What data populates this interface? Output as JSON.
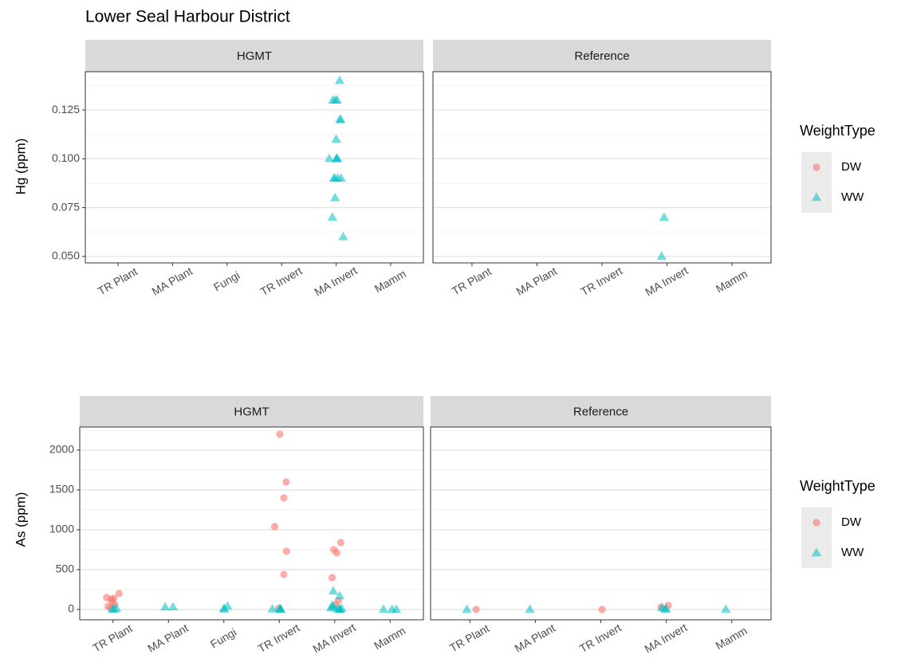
{
  "title": "Lower Seal Harbour District",
  "chart_data": [
    {
      "type": "scatter",
      "ylabel": "Hg (ppm)",
      "ylim": [
        0.0467,
        0.1446
      ],
      "yticks": [
        {
          "value": 0.05,
          "label": "0.050"
        },
        0.075,
        {
          "value": 0.1,
          "label": "0.100"
        },
        0.125
      ],
      "grid": true,
      "legend_title": "WeightType",
      "legend": "right",
      "series": [
        {
          "name": "DW",
          "color": "#f8766d",
          "marker": "circle"
        },
        {
          "name": "WW",
          "color": "#00bfc4",
          "marker": "triangle"
        }
      ],
      "panels": [
        {
          "title": "HGMT",
          "categories": [
            "TR Plant",
            "MA Plant",
            "Fungi",
            "TR Invert",
            "MA Invert",
            "Mamm"
          ],
          "series": [
            {
              "x": [],
              "values": []
            },
            {
              "x": [
                "MA Invert",
                "MA Invert",
                "MA Invert",
                "MA Invert",
                "MA Invert",
                "MA Invert",
                "MA Invert",
                "MA Invert",
                "MA Invert",
                "MA Invert",
                "MA Invert",
                "MA Invert",
                "MA Invert",
                "MA Invert",
                "MA Invert",
                "MA Invert",
                "MA Invert",
                "MA Invert"
              ],
              "values": [
                0.14,
                0.13,
                0.13,
                0.13,
                0.12,
                0.12,
                0.11,
                0.1,
                0.1,
                0.1,
                0.1,
                0.09,
                0.09,
                0.09,
                0.09,
                0.08,
                0.07,
                0.06
              ]
            }
          ]
        },
        {
          "title": "Reference",
          "categories": [
            "TR Plant",
            "MA Plant",
            "TR Invert",
            "MA Invert",
            "Mamm"
          ],
          "series": [
            {
              "x": [],
              "values": []
            },
            {
              "x": [
                "MA Invert",
                "MA Invert"
              ],
              "values": [
                0.07,
                0.05
              ]
            }
          ]
        }
      ]
    },
    {
      "type": "scatter",
      "ylabel": "As (ppm)",
      "ylim": [
        -130,
        2290
      ],
      "yticks": [
        0,
        500,
        1000,
        1500,
        2000
      ],
      "grid": true,
      "legend_title": "WeightType",
      "legend": "right",
      "series": [
        {
          "name": "DW",
          "color": "#f8766d",
          "marker": "circle"
        },
        {
          "name": "WW",
          "color": "#00bfc4",
          "marker": "triangle"
        }
      ],
      "panels": [
        {
          "title": "HGMT",
          "categories": [
            "TR Plant",
            "MA Plant",
            "Fungi",
            "TR Invert",
            "MA Invert",
            "Mamm"
          ],
          "series": [
            {
              "x": [
                "TR Plant",
                "TR Plant",
                "TR Plant",
                "TR Plant",
                "TR Plant",
                "TR Plant",
                "TR Plant",
                "TR Plant",
                "TR Invert",
                "TR Invert",
                "TR Invert",
                "TR Invert",
                "TR Invert",
                "TR Invert",
                "TR Invert",
                "MA Invert",
                "MA Invert",
                "MA Invert",
                "MA Invert",
                "MA Invert",
                "MA Invert"
              ],
              "values": [
                200,
                150,
                140,
                130,
                100,
                60,
                40,
                20,
                2200,
                1600,
                1400,
                1040,
                730,
                440,
                10,
                840,
                750,
                710,
                400,
                110,
                60
              ]
            },
            {
              "x": [
                "TR Plant",
                "TR Plant",
                "TR Plant",
                "MA Plant",
                "MA Plant",
                "Fungi",
                "Fungi",
                "Fungi",
                "TR Invert",
                "TR Invert",
                "TR Invert",
                "TR Invert",
                "MA Invert",
                "MA Invert",
                "MA Invert",
                "MA Invert",
                "MA Invert",
                "MA Invert",
                "MA Invert",
                "MA Invert",
                "MA Invert",
                "Mamm",
                "Mamm",
                "Mamm"
              ],
              "values": [
                10,
                5,
                0,
                30,
                30,
                40,
                10,
                5,
                10,
                5,
                0,
                0,
                230,
                170,
                50,
                30,
                20,
                10,
                5,
                0,
                0,
                0,
                0,
                0
              ]
            }
          ]
        },
        {
          "title": "Reference",
          "categories": [
            "TR Plant",
            "MA Plant",
            "TR Invert",
            "MA Invert",
            "Mamm"
          ],
          "series": [
            {
              "x": [
                "TR Plant",
                "TR Invert",
                "MA Invert",
                "MA Invert"
              ],
              "values": [
                0,
                0,
                50,
                30
              ]
            },
            {
              "x": [
                "TR Plant",
                "MA Plant",
                "MA Invert",
                "MA Invert",
                "MA Invert",
                "Mamm"
              ],
              "values": [
                0,
                0,
                20,
                10,
                0,
                0
              ]
            }
          ]
        }
      ]
    }
  ]
}
